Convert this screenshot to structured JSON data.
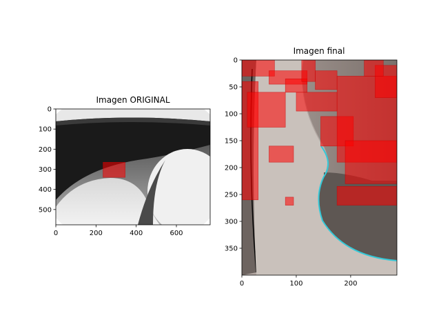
{
  "chart_data": [
    {
      "type": "image",
      "title": "Imagen ORIGINAL",
      "xlim": [
        0,
        768
      ],
      "ylim": [
        576,
        0
      ],
      "xticks": [
        0,
        200,
        400,
        600
      ],
      "yticks": [
        0,
        100,
        200,
        300,
        400,
        500
      ],
      "highlight_regions": [
        {
          "x0": 235,
          "x1": 345,
          "y0": 265,
          "y1": 340
        }
      ]
    },
    {
      "type": "image",
      "title": "Imagen final",
      "xlim": [
        0,
        285
      ],
      "ylim": [
        400,
        0
      ],
      "xticks": [
        0,
        100,
        200
      ],
      "yticks": [
        0,
        50,
        100,
        150,
        200,
        250,
        300,
        350
      ],
      "highlight_regions": [
        {
          "x0": 0,
          "x1": 60,
          "y0": 0,
          "y1": 30
        },
        {
          "x0": 50,
          "x1": 120,
          "y0": 20,
          "y1": 45
        },
        {
          "x0": 0,
          "x1": 30,
          "y0": 40,
          "y1": 260
        },
        {
          "x0": 10,
          "x1": 80,
          "y0": 60,
          "y1": 125
        },
        {
          "x0": 80,
          "x1": 120,
          "y0": 35,
          "y1": 60
        },
        {
          "x0": 110,
          "x1": 135,
          "y0": 0,
          "y1": 40
        },
        {
          "x0": 135,
          "x1": 175,
          "y0": 20,
          "y1": 55
        },
        {
          "x0": 100,
          "x1": 175,
          "y0": 60,
          "y1": 95
        },
        {
          "x0": 145,
          "x1": 205,
          "y0": 105,
          "y1": 160
        },
        {
          "x0": 175,
          "x1": 285,
          "y0": 30,
          "y1": 190
        },
        {
          "x0": 190,
          "x1": 285,
          "y0": 150,
          "y1": 230
        },
        {
          "x0": 245,
          "x1": 285,
          "y0": 10,
          "y1": 70
        },
        {
          "x0": 225,
          "x1": 260,
          "y0": 0,
          "y1": 30
        },
        {
          "x0": 50,
          "x1": 95,
          "y0": 160,
          "y1": 190
        },
        {
          "x0": 80,
          "x1": 95,
          "y0": 255,
          "y1": 270
        },
        {
          "x0": 175,
          "x1": 285,
          "y0": 235,
          "y1": 270
        }
      ]
    }
  ]
}
